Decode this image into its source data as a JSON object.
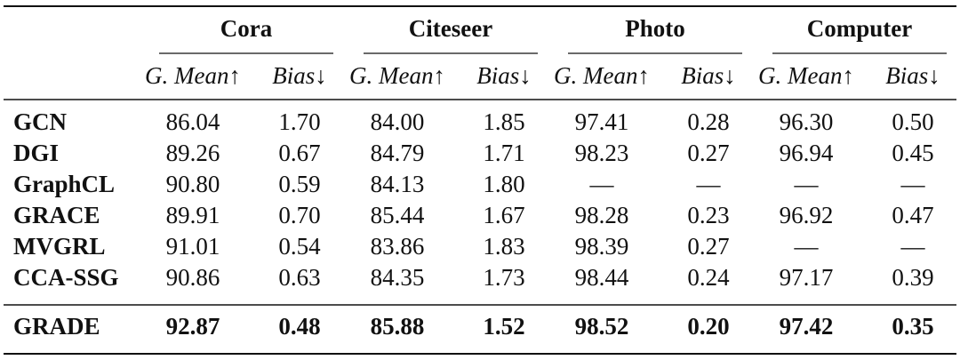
{
  "table": {
    "groups": [
      "Cora",
      "Citeseer",
      "Photo",
      "Computer"
    ],
    "subheaders": [
      "G. Mean↑",
      "Bias↓",
      "G. Mean↑",
      "Bias↓",
      "G. Mean↑",
      "Bias↓",
      "G. Mean↑",
      "Bias↓"
    ],
    "rows": [
      {
        "method": "GCN",
        "cells": [
          "86.04",
          "1.70",
          "84.00",
          "1.85",
          "97.41",
          "0.28",
          "96.30",
          "0.50"
        ]
      },
      {
        "method": "DGI",
        "cells": [
          "89.26",
          "0.67",
          "84.79",
          "1.71",
          "98.23",
          "0.27",
          "96.94",
          "0.45"
        ]
      },
      {
        "method": "GraphCL",
        "cells": [
          "90.80",
          "0.59",
          "84.13",
          "1.80",
          "—",
          "—",
          "—",
          "—"
        ]
      },
      {
        "method": "GRACE",
        "cells": [
          "89.91",
          "0.70",
          "85.44",
          "1.67",
          "98.28",
          "0.23",
          "96.92",
          "0.47"
        ]
      },
      {
        "method": "MVGRL",
        "cells": [
          "91.01",
          "0.54",
          "83.86",
          "1.83",
          "98.39",
          "0.27",
          "—",
          "—"
        ]
      },
      {
        "method": "CCA-SSG",
        "cells": [
          "90.86",
          "0.63",
          "84.35",
          "1.73",
          "98.44",
          "0.24",
          "97.17",
          "0.39"
        ]
      },
      {
        "method": "GRADE",
        "cells": [
          "92.87",
          "0.48",
          "85.88",
          "1.52",
          "98.52",
          "0.20",
          "97.42",
          "0.35"
        ]
      }
    ]
  }
}
